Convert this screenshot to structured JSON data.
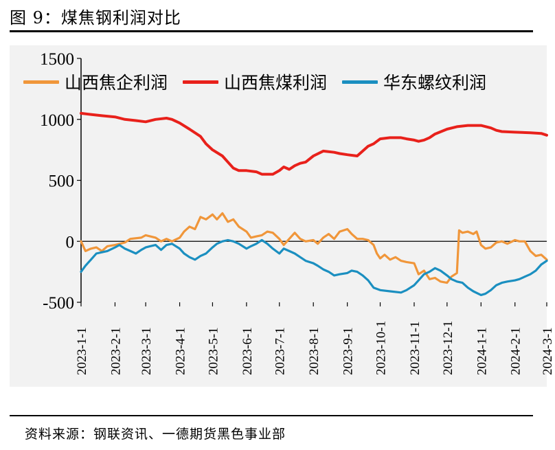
{
  "figure": {
    "title": "图 9：煤焦钢利润对比",
    "source": "资料来源：钢联资讯、一德期货黑色事业部"
  },
  "chart_data": {
    "type": "line",
    "ylim": [
      -500,
      1500
    ],
    "yticks": [
      -500,
      0,
      500,
      1000,
      1500
    ],
    "xlim": [
      "2023-01-01",
      "2024-03-01"
    ],
    "xticks": [
      "2023-1-1",
      "2023-2-1",
      "2023-3-1",
      "2023-4-1",
      "2023-5-1",
      "2023-6-1",
      "2023-7-1",
      "2023-8-1",
      "2023-9-1",
      "2023-10-1",
      "2023-11-1",
      "2023-12-1",
      "2024-1-1",
      "2024-2-1",
      "2024-3-1"
    ],
    "legend_position": "top",
    "grid": false,
    "series": [
      {
        "name": "山西焦企利润",
        "color": "#f0963a",
        "points": [
          [
            "2023-01-01",
            0
          ],
          [
            "2023-01-05",
            -80
          ],
          [
            "2023-01-10",
            -60
          ],
          [
            "2023-01-15",
            -50
          ],
          [
            "2023-01-20",
            -80
          ],
          [
            "2023-01-25",
            -40
          ],
          [
            "2023-02-01",
            -30
          ],
          [
            "2023-02-10",
            -10
          ],
          [
            "2023-02-15",
            20
          ],
          [
            "2023-02-25",
            30
          ],
          [
            "2023-03-01",
            50
          ],
          [
            "2023-03-10",
            30
          ],
          [
            "2023-03-15",
            0
          ],
          [
            "2023-03-20",
            20
          ],
          [
            "2023-03-25",
            0
          ],
          [
            "2023-04-01",
            30
          ],
          [
            "2023-04-05",
            80
          ],
          [
            "2023-04-10",
            120
          ],
          [
            "2023-04-15",
            100
          ],
          [
            "2023-04-20",
            200
          ],
          [
            "2023-04-25",
            180
          ],
          [
            "2023-05-01",
            220
          ],
          [
            "2023-05-05",
            180
          ],
          [
            "2023-05-10",
            230
          ],
          [
            "2023-05-15",
            160
          ],
          [
            "2023-05-20",
            180
          ],
          [
            "2023-05-25",
            120
          ],
          [
            "2023-06-01",
            80
          ],
          [
            "2023-06-05",
            30
          ],
          [
            "2023-06-10",
            40
          ],
          [
            "2023-06-15",
            50
          ],
          [
            "2023-06-20",
            80
          ],
          [
            "2023-06-25",
            70
          ],
          [
            "2023-07-01",
            20
          ],
          [
            "2023-07-05",
            -30
          ],
          [
            "2023-07-10",
            20
          ],
          [
            "2023-07-15",
            70
          ],
          [
            "2023-07-20",
            20
          ],
          [
            "2023-07-25",
            0
          ],
          [
            "2023-08-01",
            10
          ],
          [
            "2023-08-05",
            -20
          ],
          [
            "2023-08-10",
            30
          ],
          [
            "2023-08-15",
            60
          ],
          [
            "2023-08-20",
            20
          ],
          [
            "2023-08-25",
            80
          ],
          [
            "2023-09-01",
            100
          ],
          [
            "2023-09-05",
            60
          ],
          [
            "2023-09-10",
            20
          ],
          [
            "2023-09-15",
            20
          ],
          [
            "2023-09-20",
            10
          ],
          [
            "2023-09-25",
            -30
          ],
          [
            "2023-09-28",
            -100
          ],
          [
            "2023-10-01",
            -140
          ],
          [
            "2023-10-05",
            -110
          ],
          [
            "2023-10-10",
            -150
          ],
          [
            "2023-10-15",
            -130
          ],
          [
            "2023-10-20",
            -160
          ],
          [
            "2023-10-25",
            -170
          ],
          [
            "2023-11-01",
            -180
          ],
          [
            "2023-11-05",
            -270
          ],
          [
            "2023-11-10",
            -240
          ],
          [
            "2023-11-15",
            -310
          ],
          [
            "2023-11-20",
            -300
          ],
          [
            "2023-11-25",
            -330
          ],
          [
            "2023-12-01",
            -340
          ],
          [
            "2023-12-05",
            -290
          ],
          [
            "2023-12-10",
            -260
          ],
          [
            "2023-12-12",
            90
          ],
          [
            "2023-12-15",
            70
          ],
          [
            "2023-12-20",
            80
          ],
          [
            "2023-12-25",
            60
          ],
          [
            "2023-12-28",
            80
          ],
          [
            "2024-01-01",
            -30
          ],
          [
            "2024-01-05",
            -60
          ],
          [
            "2024-01-10",
            -50
          ],
          [
            "2024-01-15",
            -10
          ],
          [
            "2024-01-20",
            0
          ],
          [
            "2024-01-25",
            -20
          ],
          [
            "2024-02-01",
            10
          ],
          [
            "2024-02-05",
            0
          ],
          [
            "2024-02-10",
            0
          ],
          [
            "2024-02-15",
            -80
          ],
          [
            "2024-02-20",
            -120
          ],
          [
            "2024-02-25",
            -110
          ],
          [
            "2024-03-01",
            -150
          ]
        ]
      },
      {
        "name": "山西焦煤利润",
        "color": "#e8211b",
        "points": [
          [
            "2023-01-01",
            1050
          ],
          [
            "2023-01-10",
            1040
          ],
          [
            "2023-01-20",
            1030
          ],
          [
            "2023-02-01",
            1020
          ],
          [
            "2023-02-10",
            1000
          ],
          [
            "2023-02-20",
            990
          ],
          [
            "2023-03-01",
            980
          ],
          [
            "2023-03-10",
            1000
          ],
          [
            "2023-03-20",
            1010
          ],
          [
            "2023-03-25",
            1000
          ],
          [
            "2023-04-01",
            970
          ],
          [
            "2023-04-10",
            920
          ],
          [
            "2023-04-20",
            860
          ],
          [
            "2023-04-25",
            800
          ],
          [
            "2023-05-01",
            750
          ],
          [
            "2023-05-10",
            700
          ],
          [
            "2023-05-15",
            650
          ],
          [
            "2023-05-20",
            600
          ],
          [
            "2023-05-25",
            580
          ],
          [
            "2023-06-01",
            580
          ],
          [
            "2023-06-10",
            570
          ],
          [
            "2023-06-15",
            550
          ],
          [
            "2023-06-25",
            550
          ],
          [
            "2023-07-01",
            580
          ],
          [
            "2023-07-05",
            610
          ],
          [
            "2023-07-10",
            590
          ],
          [
            "2023-07-15",
            620
          ],
          [
            "2023-07-20",
            640
          ],
          [
            "2023-07-25",
            650
          ],
          [
            "2023-08-01",
            700
          ],
          [
            "2023-08-10",
            740
          ],
          [
            "2023-08-20",
            730
          ],
          [
            "2023-08-25",
            720
          ],
          [
            "2023-09-01",
            710
          ],
          [
            "2023-09-10",
            700
          ],
          [
            "2023-09-15",
            740
          ],
          [
            "2023-09-20",
            780
          ],
          [
            "2023-09-25",
            800
          ],
          [
            "2023-10-01",
            840
          ],
          [
            "2023-10-10",
            850
          ],
          [
            "2023-10-20",
            850
          ],
          [
            "2023-10-25",
            840
          ],
          [
            "2023-11-01",
            830
          ],
          [
            "2023-11-05",
            820
          ],
          [
            "2023-11-10",
            830
          ],
          [
            "2023-11-15",
            850
          ],
          [
            "2023-11-20",
            880
          ],
          [
            "2023-12-01",
            920
          ],
          [
            "2023-12-10",
            940
          ],
          [
            "2023-12-20",
            950
          ],
          [
            "2024-01-01",
            950
          ],
          [
            "2024-01-10",
            930
          ],
          [
            "2024-01-15",
            910
          ],
          [
            "2024-01-20",
            900
          ],
          [
            "2024-02-01",
            895
          ],
          [
            "2024-02-15",
            890
          ],
          [
            "2024-02-25",
            885
          ],
          [
            "2024-03-01",
            870
          ]
        ]
      },
      {
        "name": "华东螺纹利润",
        "color": "#1b8fc0",
        "points": [
          [
            "2023-01-01",
            -250
          ],
          [
            "2023-01-05",
            -200
          ],
          [
            "2023-01-10",
            -150
          ],
          [
            "2023-01-15",
            -100
          ],
          [
            "2023-01-20",
            -90
          ],
          [
            "2023-01-25",
            -80
          ],
          [
            "2023-02-01",
            -50
          ],
          [
            "2023-02-05",
            -30
          ],
          [
            "2023-02-10",
            -60
          ],
          [
            "2023-02-15",
            -80
          ],
          [
            "2023-02-20",
            -100
          ],
          [
            "2023-02-25",
            -70
          ],
          [
            "2023-03-01",
            -50
          ],
          [
            "2023-03-05",
            -40
          ],
          [
            "2023-03-10",
            -30
          ],
          [
            "2023-03-15",
            -70
          ],
          [
            "2023-03-20",
            -30
          ],
          [
            "2023-03-25",
            -20
          ],
          [
            "2023-04-01",
            -60
          ],
          [
            "2023-04-05",
            -100
          ],
          [
            "2023-04-10",
            -130
          ],
          [
            "2023-04-15",
            -150
          ],
          [
            "2023-04-20",
            -120
          ],
          [
            "2023-04-25",
            -100
          ],
          [
            "2023-05-01",
            -50
          ],
          [
            "2023-05-05",
            -20
          ],
          [
            "2023-05-10",
            0
          ],
          [
            "2023-05-15",
            10
          ],
          [
            "2023-05-20",
            0
          ],
          [
            "2023-05-25",
            -20
          ],
          [
            "2023-06-01",
            -60
          ],
          [
            "2023-06-05",
            -40
          ],
          [
            "2023-06-10",
            -20
          ],
          [
            "2023-06-15",
            10
          ],
          [
            "2023-06-20",
            -20
          ],
          [
            "2023-06-25",
            -60
          ],
          [
            "2023-07-01",
            -100
          ],
          [
            "2023-07-05",
            -60
          ],
          [
            "2023-07-10",
            -80
          ],
          [
            "2023-07-15",
            -100
          ],
          [
            "2023-07-20",
            -130
          ],
          [
            "2023-07-25",
            -160
          ],
          [
            "2023-08-01",
            -180
          ],
          [
            "2023-08-05",
            -200
          ],
          [
            "2023-08-10",
            -230
          ],
          [
            "2023-08-15",
            -250
          ],
          [
            "2023-08-20",
            -280
          ],
          [
            "2023-08-25",
            -270
          ],
          [
            "2023-09-01",
            -260
          ],
          [
            "2023-09-05",
            -240
          ],
          [
            "2023-09-10",
            -250
          ],
          [
            "2023-09-15",
            -280
          ],
          [
            "2023-09-20",
            -320
          ],
          [
            "2023-09-25",
            -380
          ],
          [
            "2023-10-01",
            -400
          ],
          [
            "2023-10-10",
            -410
          ],
          [
            "2023-10-20",
            -420
          ],
          [
            "2023-10-25",
            -400
          ],
          [
            "2023-11-01",
            -360
          ],
          [
            "2023-11-05",
            -320
          ],
          [
            "2023-11-10",
            -270
          ],
          [
            "2023-11-15",
            -250
          ],
          [
            "2023-11-20",
            -220
          ],
          [
            "2023-11-25",
            -240
          ],
          [
            "2023-12-01",
            -280
          ],
          [
            "2023-12-05",
            -310
          ],
          [
            "2023-12-10",
            -330
          ],
          [
            "2023-12-15",
            -340
          ],
          [
            "2023-12-20",
            -380
          ],
          [
            "2023-12-25",
            -410
          ],
          [
            "2024-01-01",
            -440
          ],
          [
            "2024-01-05",
            -430
          ],
          [
            "2024-01-10",
            -400
          ],
          [
            "2024-01-15",
            -360
          ],
          [
            "2024-01-20",
            -340
          ],
          [
            "2024-01-25",
            -330
          ],
          [
            "2024-02-01",
            -320
          ],
          [
            "2024-02-05",
            -310
          ],
          [
            "2024-02-10",
            -290
          ],
          [
            "2024-02-15",
            -270
          ],
          [
            "2024-02-20",
            -240
          ],
          [
            "2024-02-25",
            -190
          ],
          [
            "2024-03-01",
            -160
          ]
        ]
      }
    ]
  }
}
